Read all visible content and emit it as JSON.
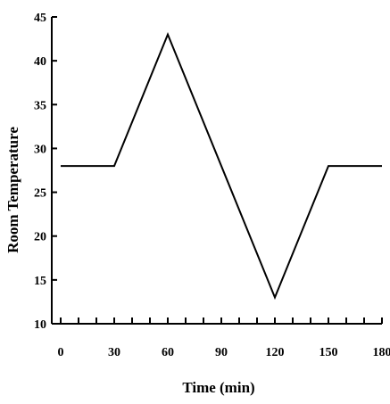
{
  "chart_data": {
    "type": "line",
    "title": "",
    "xlabel": "Time (min)",
    "ylabel": "Room Temperature",
    "xlim": [
      -5,
      180
    ],
    "ylim": [
      10,
      45
    ],
    "xticks": [
      0,
      30,
      60,
      90,
      120,
      150,
      180
    ],
    "yticks": [
      10,
      15,
      20,
      25,
      30,
      35,
      40,
      45
    ],
    "xminor_step": 10,
    "grid": false,
    "legend": "none",
    "line_color": "#000000",
    "series": [
      {
        "x": [
          0,
          30,
          60,
          120,
          150,
          180
        ],
        "y": [
          28,
          28,
          43,
          13,
          28,
          28
        ]
      }
    ]
  }
}
